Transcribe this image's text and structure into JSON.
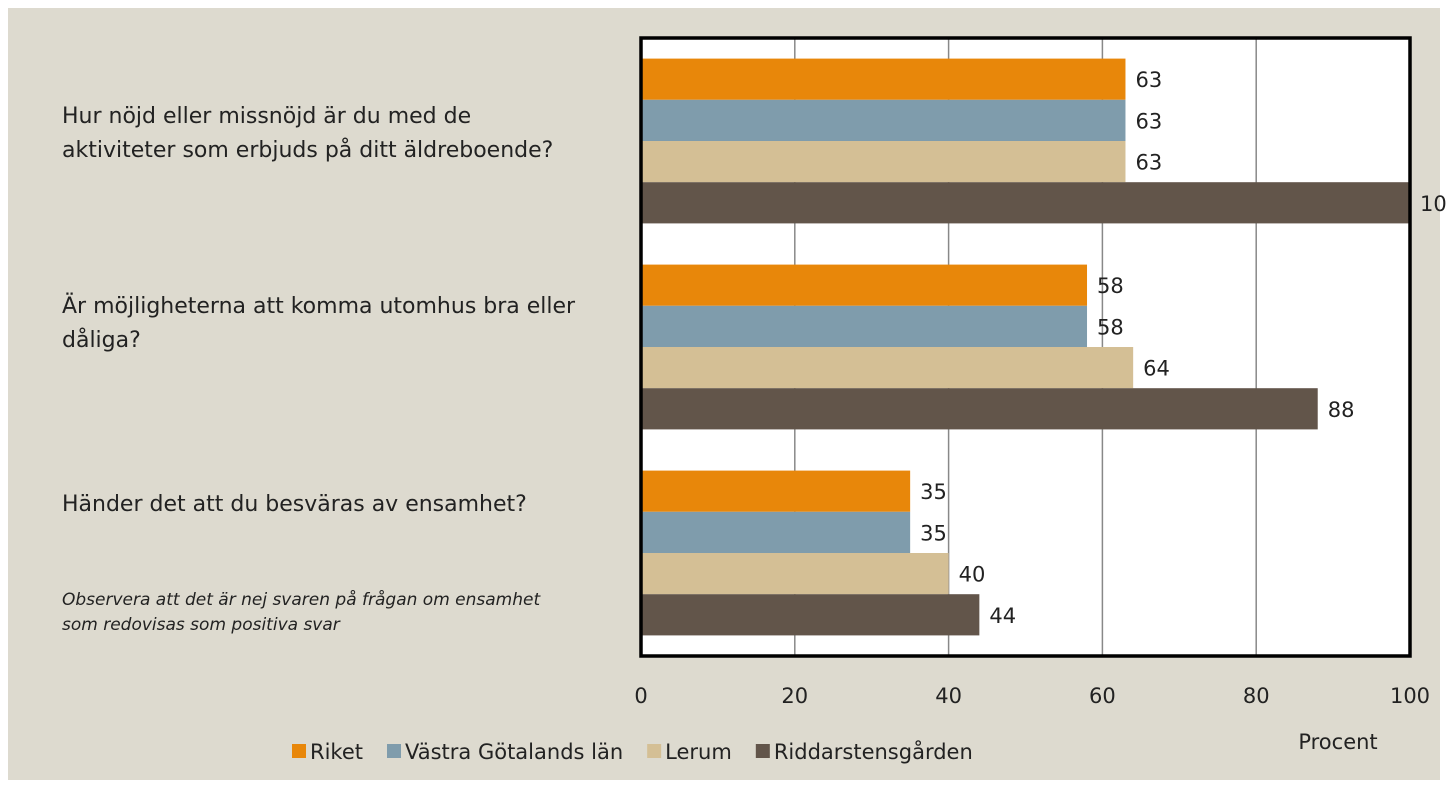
{
  "chart_data": {
    "type": "bar",
    "orientation": "horizontal",
    "categories": [
      "Hur nöjd eller missnöjd är du med de aktiviteter som erbjuds på ditt äldreboende?",
      "Är möjligheterna att komma utomhus bra eller dåliga?",
      "Händer det att du besväras av ensamhet?"
    ],
    "series": [
      {
        "name": "Riket",
        "color": "#e8870a",
        "values": [
          63,
          58,
          35
        ]
      },
      {
        "name": "Västra Götalands län",
        "color": "#7f9cac",
        "values": [
          63,
          58,
          35
        ]
      },
      {
        "name": "Lerum",
        "color": "#d4bf95",
        "values": [
          63,
          64,
          40
        ]
      },
      {
        "name": "Riddarstensgården",
        "color": "#62554a",
        "values": [
          100,
          88,
          44
        ]
      }
    ],
    "xlim": [
      0,
      100
    ],
    "xticks": [
      0,
      20,
      40,
      60,
      80,
      100
    ],
    "grid": true,
    "xlabel": "Procent",
    "annotation": "Observera att det är nej svaren på frågan om ensamhet som redovisas som positiva svar",
    "legend": "bottom"
  }
}
